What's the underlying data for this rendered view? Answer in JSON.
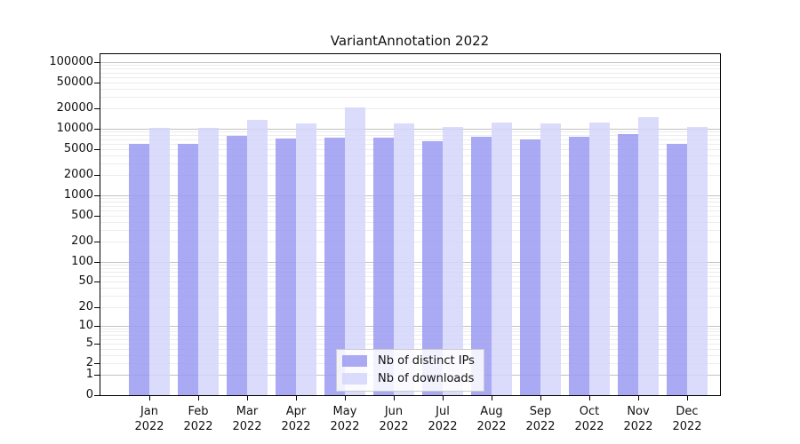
{
  "title": "VariantAnnotation 2022",
  "chart_data": {
    "type": "bar",
    "scale": "log10(1+y)",
    "title": "VariantAnnotation 2022",
    "categories": [
      "Jan",
      "Feb",
      "Mar",
      "Apr",
      "May",
      "Jun",
      "Jul",
      "Aug",
      "Sep",
      "Oct",
      "Nov",
      "Dec"
    ],
    "year": "2022",
    "series": [
      {
        "name": "Nb of distinct IPs",
        "color": "#9a9af2",
        "values": [
          5900,
          5900,
          7900,
          7200,
          7300,
          7400,
          6600,
          7700,
          6900,
          7600,
          8300,
          6000
        ]
      },
      {
        "name": "Nb of downloads",
        "color": "#d5d5fa",
        "values": [
          10200,
          10200,
          13700,
          12000,
          20800,
          12000,
          10500,
          12400,
          11900,
          12600,
          15000,
          10700
        ]
      }
    ],
    "yticks": [
      0,
      1,
      2,
      5,
      10,
      20,
      50,
      100,
      200,
      500,
      1000,
      2000,
      5000,
      10000,
      20000,
      50000,
      100000
    ],
    "ylim": [
      0,
      131000
    ],
    "xlabel": "",
    "ylabel": "",
    "grid": true,
    "legend_position": "bottom-center-inside"
  },
  "legend": {
    "items": [
      {
        "label": "Nb of distinct IPs",
        "color": "#9a9af2"
      },
      {
        "label": "Nb of downloads",
        "color": "#d5d5fa"
      }
    ]
  }
}
